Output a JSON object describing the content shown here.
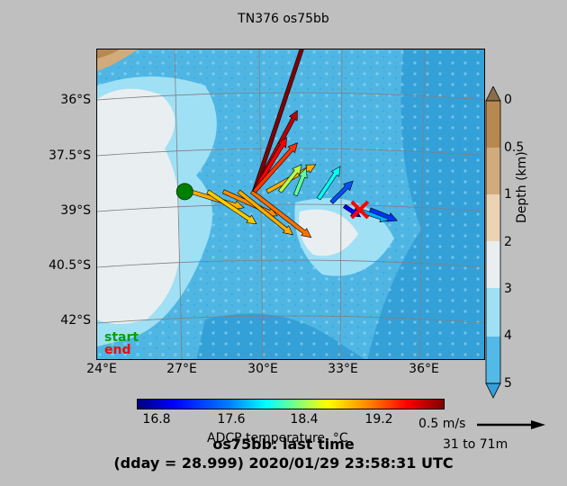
{
  "title": "TN376 os75bb",
  "map": {
    "lat_labels": [
      "36°S",
      "37.5°S",
      "39°S",
      "40.5°S",
      "42°S"
    ],
    "lon_labels": [
      "24°E",
      "27°E",
      "30°E",
      "33°E",
      "36°E"
    ],
    "start_label": "start",
    "end_label": "end",
    "start_marker_color": "#008000",
    "end_marker_color": "#ff0000"
  },
  "depth_colorbar": {
    "title": "Depth (km)",
    "ticks": [
      "0",
      "0.5",
      "1",
      "2",
      "3",
      "4",
      "5"
    ],
    "colors": [
      "#8a6d4a",
      "#b8894f",
      "#d2ab7d",
      "#ebd4b4",
      "#e9eef0",
      "#9fe0f5",
      "#53b9e6",
      "#34a0d8"
    ]
  },
  "temperature_colorbar": {
    "title": "ADCP temperature, °C",
    "ticks": [
      "16.8",
      "17.6",
      "18.4",
      "19.2"
    ],
    "range": [
      16.6,
      20.0
    ]
  },
  "scale": {
    "label": "0.5 m/s",
    "depth_range": "31 to 71m"
  },
  "footer": {
    "line1": "os75bb: last time",
    "line2": "(dday = 28.999) 2020/01/29 23:58:31 UTC"
  },
  "chart_data": {
    "type": "quiver",
    "x_unit": "degrees East",
    "y_unit": "degrees South",
    "vectors": [
      {
        "lon": 27.5,
        "lat": 38.8,
        "u": 1.0,
        "v": -0.3,
        "temp": 19.0
      },
      {
        "lon": 28.2,
        "lat": 38.8,
        "u": 0.9,
        "v": -0.6,
        "temp": 18.9
      },
      {
        "lon": 28.8,
        "lat": 38.8,
        "u": 1.0,
        "v": -0.45,
        "temp": 19.1
      },
      {
        "lon": 29.4,
        "lat": 38.8,
        "u": 1.0,
        "v": -0.8,
        "temp": 19.0
      },
      {
        "lon": 29.9,
        "lat": 38.8,
        "u": 1.1,
        "v": -0.85,
        "temp": 19.2
      },
      {
        "lon": 30.0,
        "lat": 38.8,
        "u": 0.8,
        "v": 1.5,
        "temp": 19.8
      },
      {
        "lon": 30.0,
        "lat": 38.8,
        "u": 1.1,
        "v": 3.3,
        "temp": 20.0
      },
      {
        "lon": 30.0,
        "lat": 38.8,
        "u": 0.6,
        "v": 1.0,
        "temp": 19.6
      },
      {
        "lon": 30.0,
        "lat": 38.8,
        "u": 0.8,
        "v": 0.9,
        "temp": 19.4
      },
      {
        "lon": 30.5,
        "lat": 38.8,
        "u": 0.9,
        "v": 0.5,
        "temp": 19.0
      },
      {
        "lon": 31.0,
        "lat": 38.8,
        "u": 0.4,
        "v": 0.5,
        "temp": 18.5
      },
      {
        "lon": 31.6,
        "lat": 38.9,
        "u": 0.2,
        "v": 0.5,
        "temp": 18.2
      },
      {
        "lon": 32.5,
        "lat": 39.0,
        "u": 0.4,
        "v": 0.6,
        "temp": 17.9
      },
      {
        "lon": 33.0,
        "lat": 39.1,
        "u": 0.4,
        "v": 0.4,
        "temp": 17.3
      },
      {
        "lon": 33.5,
        "lat": 39.2,
        "u": 0.3,
        "v": -0.2,
        "temp": 17.0
      },
      {
        "lon": 34.0,
        "lat": 39.3,
        "u": 0.6,
        "v": -0.2,
        "temp": 17.6
      },
      {
        "lon": 34.5,
        "lat": 39.3,
        "u": 0.5,
        "v": -0.2,
        "temp": 17.2
      }
    ],
    "track": {
      "start": {
        "lon": 27.3,
        "lat": 38.8
      },
      "end": {
        "lon": 34.1,
        "lat": 39.3
      }
    }
  }
}
